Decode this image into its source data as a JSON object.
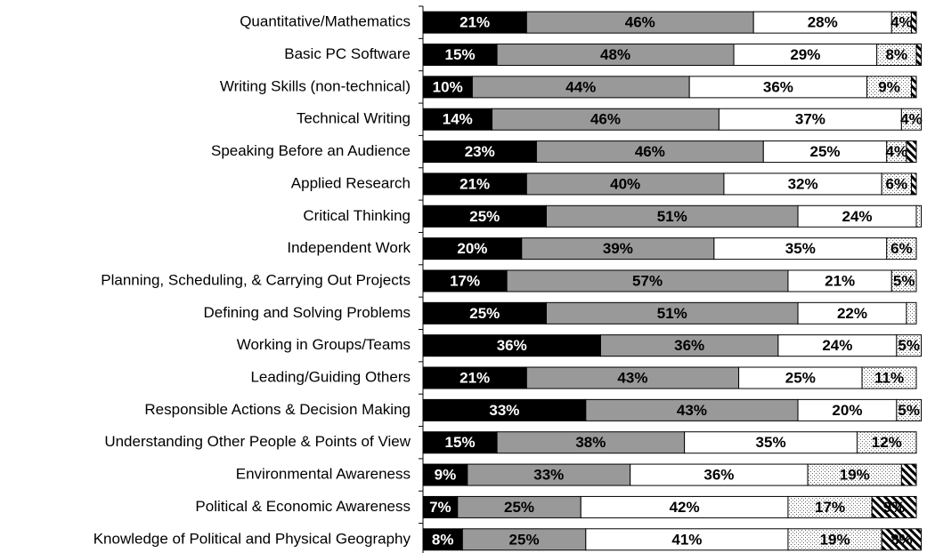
{
  "chart_data": {
    "type": "stacked_barh",
    "categories": [
      "Quantitative/Mathematics",
      "Basic PC Software",
      "Writing Skills (non-technical)",
      "Technical Writing",
      "Speaking Before an Audience",
      "Applied Research",
      "Critical Thinking",
      "Independent Work",
      "Planning, Scheduling, & Carrying Out Projects",
      "Defining and Solving Problems",
      "Working in Groups/Teams",
      "Leading/Guiding Others",
      "Responsible Actions & Decision Making",
      "Understanding Other People & Points of View",
      "Environmental Awareness",
      "Political & Economic Awareness",
      "Knowledge of Political and Physical Geography"
    ],
    "xlim": [
      0,
      100
    ],
    "series": [
      {
        "color": "#000000",
        "values": [
          21,
          15,
          10,
          14,
          23,
          21,
          25,
          20,
          17,
          25,
          36,
          21,
          33,
          15,
          9,
          7,
          8
        ],
        "value_labels": [
          "21%",
          "15%",
          "10%",
          "14%",
          "23%",
          "21%",
          "25%",
          "20%",
          "17%",
          "25%",
          "36%",
          "21%",
          "33%",
          "15%",
          "9%",
          "7%",
          "8%"
        ]
      },
      {
        "color": "#999999",
        "values": [
          46,
          48,
          44,
          46,
          46,
          40,
          51,
          39,
          57,
          51,
          36,
          43,
          43,
          38,
          33,
          25,
          25
        ],
        "value_labels": [
          "46%",
          "48%",
          "44%",
          "46%",
          "46%",
          "40%",
          "51%",
          "39%",
          "57%",
          "51%",
          "36%",
          "43%",
          "43%",
          "38%",
          "33%",
          "25%",
          "25%"
        ]
      },
      {
        "color": "#ffffff",
        "values": [
          28,
          29,
          36,
          37,
          25,
          32,
          24,
          35,
          21,
          22,
          24,
          25,
          20,
          35,
          36,
          42,
          41
        ],
        "value_labels": [
          "28%",
          "29%",
          "36%",
          "37%",
          "25%",
          "32%",
          "24%",
          "35%",
          "21%",
          "22%",
          "24%",
          "25%",
          "20%",
          "35%",
          "36%",
          "42%",
          "41%"
        ]
      },
      {
        "color": "dotted",
        "values": [
          4,
          8,
          9,
          4,
          4,
          6,
          1,
          6,
          5,
          2,
          5,
          11,
          5,
          12,
          19,
          17,
          19
        ],
        "value_labels": [
          "4%",
          "8%",
          "9%",
          "4%",
          "4%",
          "6%",
          null,
          "6%",
          "5%",
          null,
          "5%",
          "11%",
          "5%",
          "12%",
          "19%",
          "17%",
          "19%"
        ]
      },
      {
        "color": "hatched",
        "values": [
          1,
          1,
          1,
          0,
          2,
          1,
          0,
          0,
          0,
          0,
          0,
          0,
          0,
          0,
          3,
          9,
          8
        ],
        "value_labels": [
          null,
          null,
          null,
          null,
          null,
          null,
          null,
          null,
          null,
          null,
          null,
          null,
          null,
          null,
          null,
          "9%",
          "8%"
        ]
      }
    ]
  }
}
